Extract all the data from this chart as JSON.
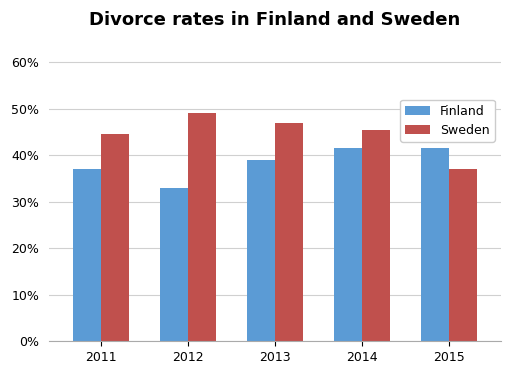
{
  "title": "Divorce rates in Finland and Sweden",
  "years": [
    "2011",
    "2012",
    "2013",
    "2014",
    "2015"
  ],
  "finland": [
    0.37,
    0.33,
    0.39,
    0.415,
    0.415
  ],
  "sweden": [
    0.445,
    0.49,
    0.47,
    0.455,
    0.37
  ],
  "finland_color": "#5B9BD5",
  "sweden_color": "#C0504D",
  "ylim": [
    0,
    0.65
  ],
  "yticks": [
    0.0,
    0.1,
    0.2,
    0.3,
    0.4,
    0.5,
    0.6
  ],
  "bar_width": 0.32,
  "legend_labels": [
    "Finland",
    "Sweden"
  ],
  "background_color": "#ffffff",
  "plot_bg_color": "#ffffff",
  "grid_color": "#d0d0d0",
  "title_fontsize": 13,
  "tick_fontsize": 9,
  "legend_fontsize": 9
}
